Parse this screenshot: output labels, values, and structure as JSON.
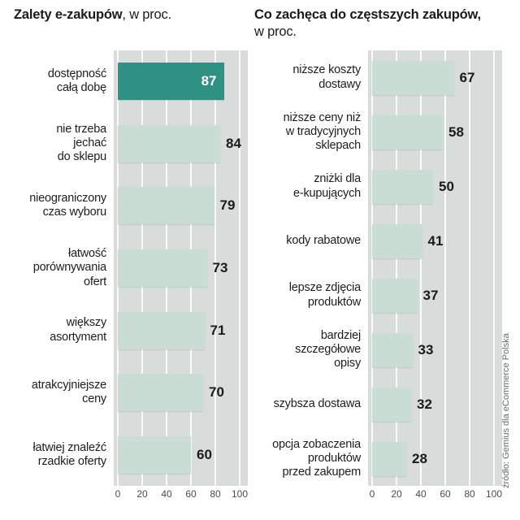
{
  "colors": {
    "panel": "#d8dcda",
    "bar": "#c9ddd4",
    "bar_highlight": "#2f9184",
    "gridline": "#ffffff"
  },
  "source": "źródło: Gemius dla eCommerce Polska",
  "chart_data": [
    {
      "type": "bar",
      "orientation": "horizontal",
      "title": "Zalety e-zakupów, w proc.",
      "title_bold": "Zalety e-zakupów",
      "title_rest": ", w proc.",
      "xlim": [
        0,
        100
      ],
      "ticks": [
        0,
        20,
        40,
        60,
        80,
        100
      ],
      "grid": true,
      "highlight_index": 0,
      "categories": [
        "dostępność\ncałą dobę",
        "nie trzeba\njechać\ndo sklepu",
        "nieograniczony\nczas wyboru",
        "łatwość\nporównywania\nofert",
        "większy\nasortyment",
        "atrakcyjniejsze\nceny",
        "łatwiej znaleźć\nrzadkie oferty"
      ],
      "values": [
        87,
        84,
        79,
        73,
        71,
        70,
        60
      ]
    },
    {
      "type": "bar",
      "orientation": "horizontal",
      "title": "Co zachęca do częstszych zakupów, w proc.",
      "title_bold": "Co zachęca do częstszych zakupów,",
      "title_rest": "w proc.",
      "xlim": [
        0,
        100
      ],
      "ticks": [
        0,
        20,
        40,
        60,
        80,
        100
      ],
      "grid": true,
      "highlight_index": null,
      "categories": [
        "niższe koszty\ndostawy",
        "niższe ceny niż\nw tradycyjnych\nsklepach",
        "zniżki dla\ne-kupujących",
        "kody rabatowe",
        "lepsze zdjęcia\nproduktów",
        "bardziej\nszczegółowe\nopisy",
        "szybsza dostawa",
        "opcja zobaczenia\nproduktów\nprzed zakupem"
      ],
      "values": [
        67,
        58,
        50,
        41,
        37,
        33,
        32,
        28
      ]
    }
  ]
}
